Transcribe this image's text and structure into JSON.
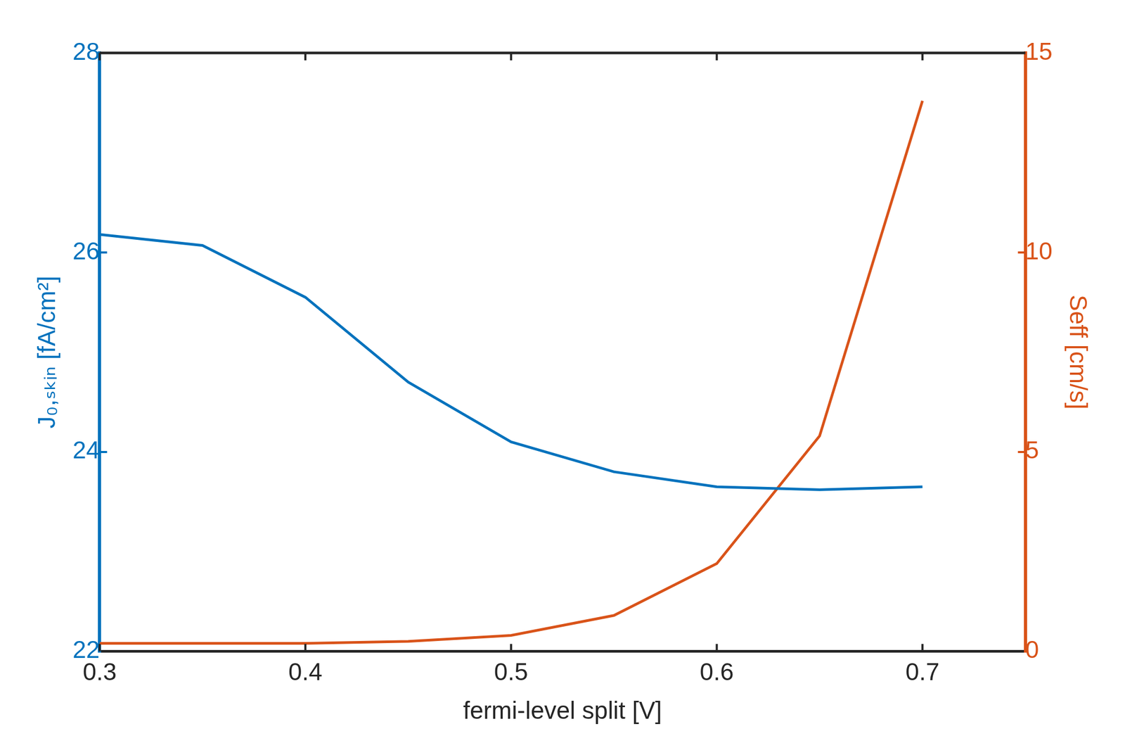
{
  "chart_data": {
    "type": "line",
    "x_label": "fermi-level split [V]",
    "y_label": "J₀,ₛₖᵢₙ [fA/cm²]",
    "y2_label": "Seff [cm/s]",
    "x": [
      0.3,
      0.35,
      0.4,
      0.45,
      0.5,
      0.55,
      0.6,
      0.65,
      0.7
    ],
    "series": [
      {
        "color": "#0072BD",
        "values": [
          26.18,
          26.07,
          25.55,
          24.7,
          24.1,
          23.8,
          23.65,
          23.62,
          23.65
        ]
      },
      {
        "color": "#D95319",
        "axis": "y2",
        "values": [
          0.2,
          0.2,
          0.2,
          0.25,
          0.4,
          0.9,
          2.2,
          5.4,
          13.8
        ]
      }
    ],
    "xlim": [
      0.3,
      0.75
    ],
    "xticks": [
      0.3,
      0.4,
      0.5,
      0.6,
      0.7
    ],
    "ylim": [
      22,
      28
    ],
    "yticks": [
      22,
      24,
      26,
      28
    ],
    "y2lim": [
      0,
      15
    ],
    "y2ticks": [
      0,
      5,
      10,
      15
    ],
    "grid": false
  }
}
